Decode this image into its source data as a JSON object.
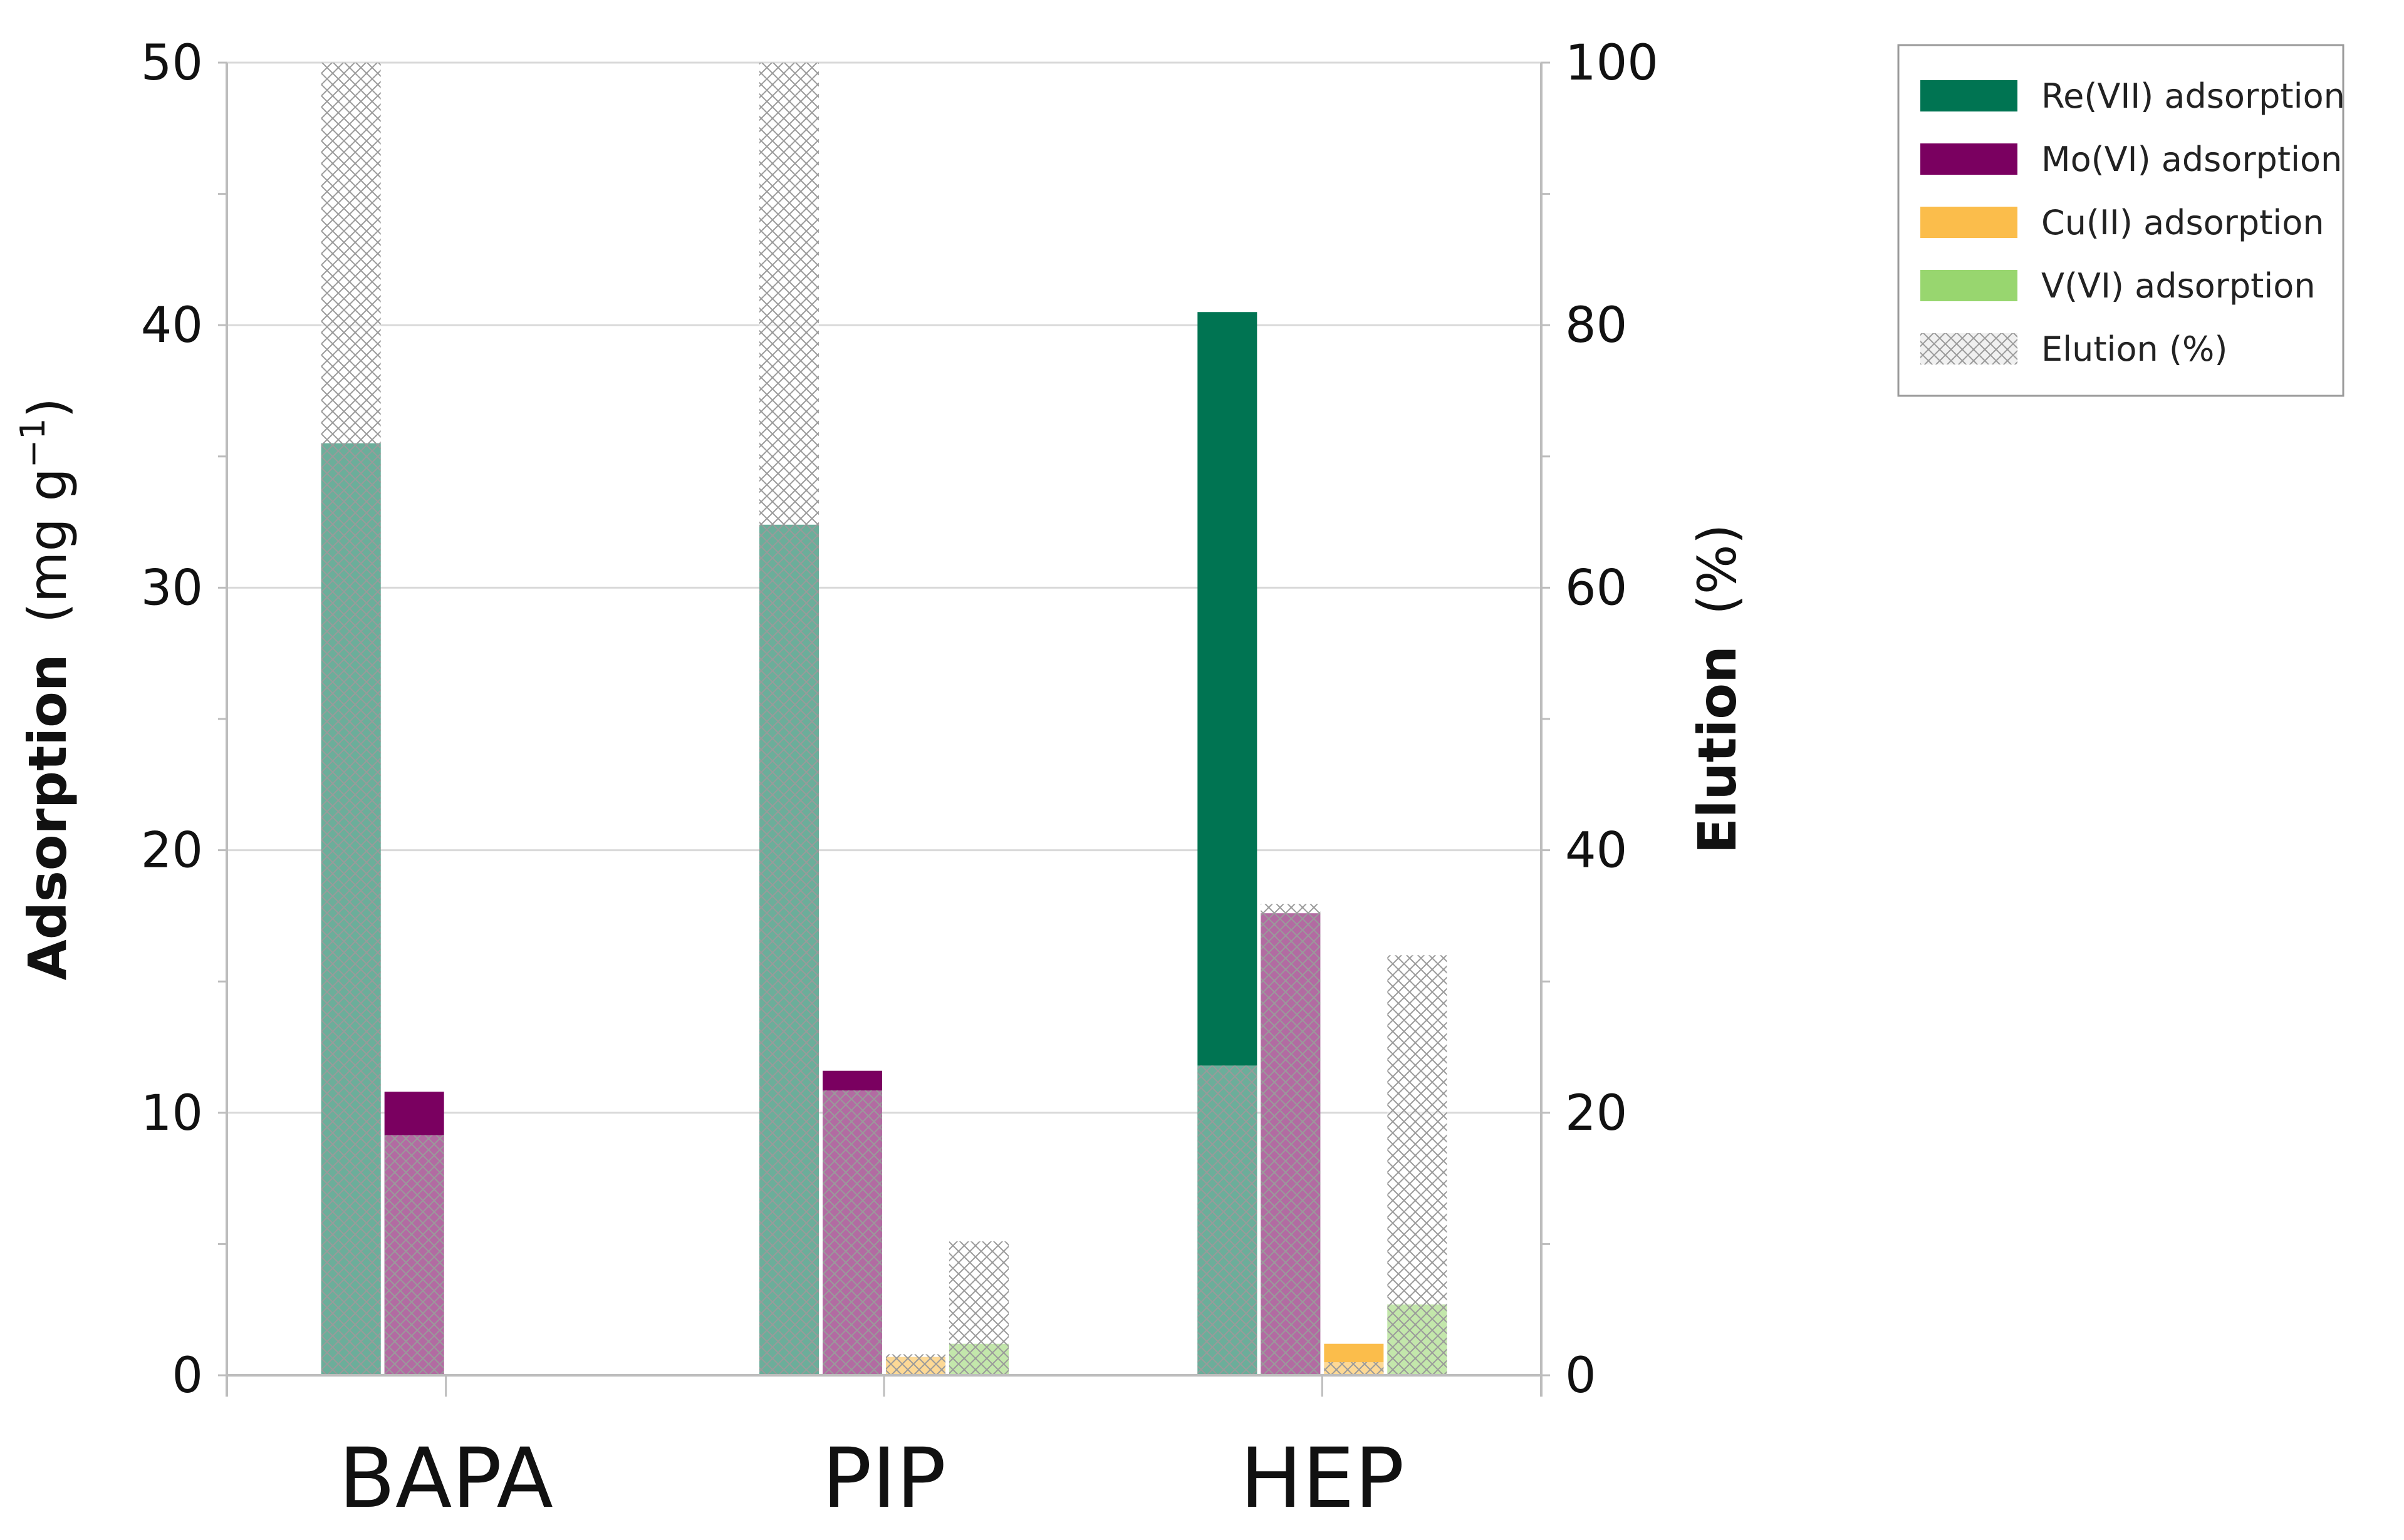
{
  "chart_data": {
    "type": "bar",
    "categories": [
      "BAPA",
      "PIP",
      "HEP"
    ],
    "y_left": {
      "label_bold": "Adsorption",
      "label_unit": "(mg g",
      "label_sup": "−1",
      "label_close": ")",
      "lim": [
        0,
        50
      ],
      "ticks": [
        0,
        10,
        20,
        30,
        40,
        50
      ]
    },
    "y_right": {
      "label_bold": "Elution",
      "label_unit": "(%)",
      "lim": [
        0,
        100
      ],
      "ticks": [
        0,
        20,
        40,
        60,
        80,
        100
      ]
    },
    "grid": true,
    "legend_position": "top-right",
    "series": [
      {
        "name": "Re(VII) adsorption",
        "color": "#007452",
        "axis": "left",
        "values": [
          35.5,
          32.4,
          40.5
        ]
      },
      {
        "name": "Mo(VI) adsorption",
        "color": "#7a0060",
        "axis": "left",
        "values": [
          10.8,
          11.6,
          17.6
        ]
      },
      {
        "name": "Cu(II) adsorption",
        "color": "#fbbd4b",
        "axis": "left",
        "values": [
          0,
          0.7,
          1.2
        ]
      },
      {
        "name": "V(VI) adsorption",
        "color": "#98d66f",
        "axis": "left",
        "values": [
          0,
          1.2,
          2.7
        ]
      }
    ],
    "elution": {
      "name": "Elution (%)",
      "axis": "right",
      "pattern_color": "#b3b3b3",
      "values": [
        [
          100,
          18.3,
          0,
          0
        ],
        [
          100,
          21.7,
          1.6,
          10.2
        ],
        [
          23.6,
          35.9,
          1.0,
          32.0
        ]
      ]
    }
  }
}
